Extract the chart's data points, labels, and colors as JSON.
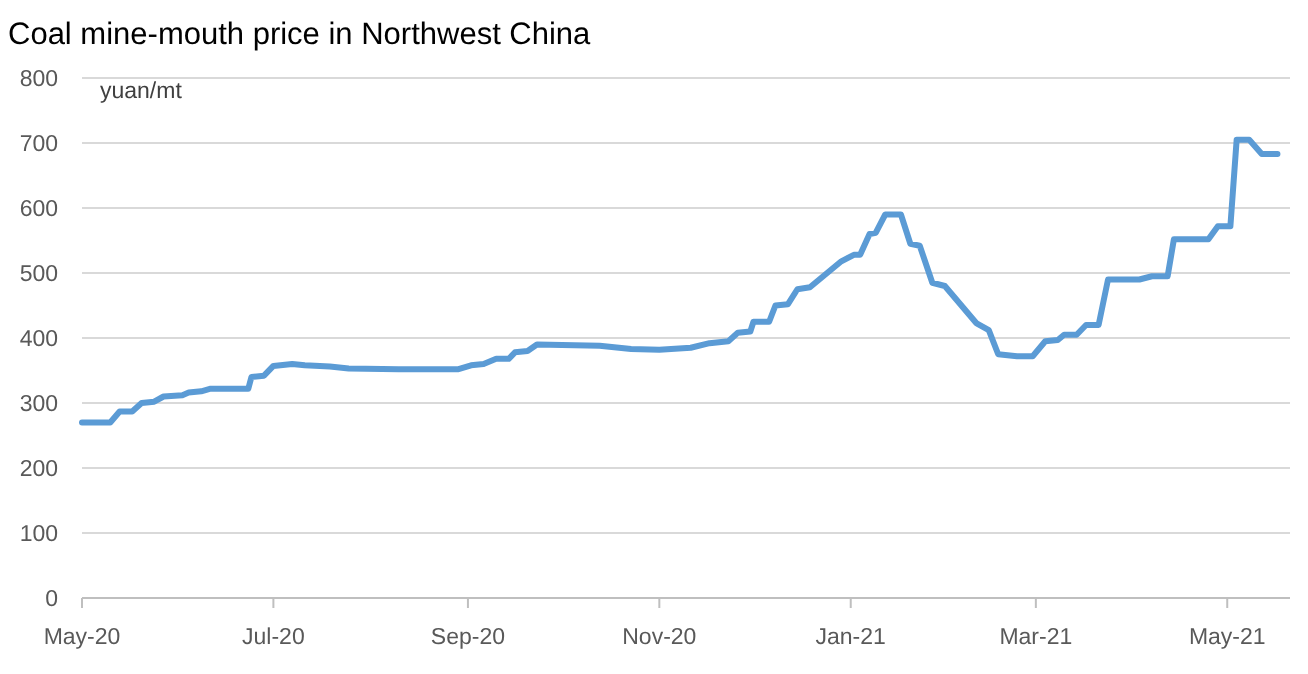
{
  "chart_data": {
    "type": "line",
    "title": "Coal mine-mouth price in Northwest China",
    "ylabel": "yuan/mt",
    "x": [
      "2020-05-01",
      "2020-05-10",
      "2020-05-13",
      "2020-05-17",
      "2020-05-20",
      "2020-05-24",
      "2020-05-27",
      "2020-06-02",
      "2020-06-04",
      "2020-06-08",
      "2020-06-11",
      "2020-06-23",
      "2020-06-24",
      "2020-06-28",
      "2020-07-01",
      "2020-07-07",
      "2020-07-11",
      "2020-07-19",
      "2020-07-25",
      "2020-08-10",
      "2020-08-29",
      "2020-09-02",
      "2020-09-06",
      "2020-09-10",
      "2020-09-14",
      "2020-09-16",
      "2020-09-20",
      "2020-09-23",
      "2020-10-13",
      "2020-10-23",
      "2020-11-01",
      "2020-11-11",
      "2020-11-17",
      "2020-11-23",
      "2020-11-26",
      "2020-11-30",
      "2020-12-01",
      "2020-12-06",
      "2020-12-08",
      "2020-12-12",
      "2020-12-15",
      "2020-12-19",
      "2020-12-29",
      "2021-01-02",
      "2021-01-04",
      "2021-01-07",
      "2021-01-09",
      "2021-01-12",
      "2021-01-17",
      "2021-01-20",
      "2021-01-23",
      "2021-01-27",
      "2021-01-31",
      "2021-02-10",
      "2021-02-14",
      "2021-02-17",
      "2021-02-23",
      "2021-02-28",
      "2021-03-04",
      "2021-03-08",
      "2021-03-10",
      "2021-03-14",
      "2021-03-17",
      "2021-03-21",
      "2021-03-24",
      "2021-04-03",
      "2021-04-07",
      "2021-04-12",
      "2021-04-14",
      "2021-04-25",
      "2021-04-28",
      "2021-05-02",
      "2021-05-04",
      "2021-05-08",
      "2021-05-12",
      "2021-05-17"
    ],
    "series": [
      {
        "color": "#5b9bd5",
        "values": [
          270,
          270,
          287,
          287,
          300,
          302,
          310,
          312,
          316,
          318,
          322,
          322,
          340,
          342,
          357,
          360,
          358,
          356,
          353,
          352,
          352,
          358,
          360,
          368,
          368,
          378,
          380,
          390,
          388,
          383,
          382,
          385,
          392,
          395,
          408,
          410,
          425,
          425,
          450,
          452,
          475,
          478,
          518,
          528,
          528,
          560,
          562,
          590,
          590,
          545,
          542,
          485,
          480,
          423,
          412,
          375,
          372,
          372,
          395,
          397,
          405,
          405,
          420,
          420,
          490,
          490,
          495,
          495,
          552,
          552,
          572,
          572,
          705,
          705,
          683,
          683
        ]
      }
    ],
    "xlim": [
      "2020-05-01",
      "2021-05-21"
    ],
    "xticks": [
      {
        "value": "2020-05-01",
        "label": "May-20"
      },
      {
        "value": "2020-07-01",
        "label": "Jul-20"
      },
      {
        "value": "2020-09-01",
        "label": "Sep-20"
      },
      {
        "value": "2020-11-01",
        "label": "Nov-20"
      },
      {
        "value": "2021-01-01",
        "label": "Jan-21"
      },
      {
        "value": "2021-03-01",
        "label": "Mar-21"
      },
      {
        "value": "2021-05-01",
        "label": "May-21"
      }
    ],
    "ylim": [
      0,
      800
    ],
    "yticks": [
      0,
      100,
      200,
      300,
      400,
      500,
      600,
      700,
      800
    ],
    "grid": "y",
    "marker": "none",
    "line_style": "solid"
  }
}
